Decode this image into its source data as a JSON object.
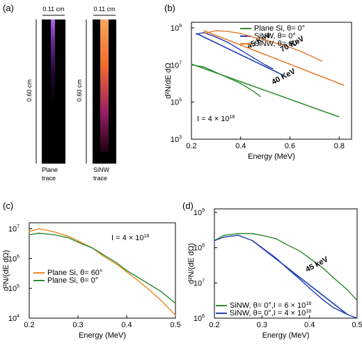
{
  "panels": {
    "a": {
      "letter": "(a)",
      "width_label": "0.11 cm",
      "height_label": "0.60 cm",
      "trace_labels": [
        "Plane trace",
        "SiNW trace"
      ],
      "trace_label_lines": [
        [
          "Plane",
          "trace"
        ],
        [
          "SiNW",
          "trace"
        ]
      ]
    },
    "b": {
      "letter": "(b)"
    },
    "c": {
      "letter": "(c)"
    },
    "d": {
      "letter": "(d)"
    }
  },
  "chart_data": [
    {
      "id": "b",
      "type": "line",
      "xlabel": "Energy (MeV)",
      "ylabel": "d²N/dE dΩ",
      "xlim": [
        0.2,
        0.85
      ],
      "ylim_log10": [
        3,
        9.3
      ],
      "log_y": true,
      "x_ticks": [
        "0.2",
        "0.4",
        "0.6",
        "0.8"
      ],
      "x_tick_values": [
        0.2,
        0.4,
        0.6,
        0.8
      ],
      "y_tick_exponents": [
        3,
        5,
        7,
        9
      ],
      "y_tick_base": "10",
      "annotation": "I = 4 × 10",
      "annotation_sup": "18",
      "legend_position": "top-right",
      "series": [
        {
          "name": "Plane Si, θ= 0°",
          "color": "#2e8b2e",
          "x": [
            0.2,
            0.25,
            0.3,
            0.35,
            0.4,
            0.45,
            0.48
          ],
          "log10y": [
            7.0,
            6.9,
            6.6,
            6.3,
            6.0,
            5.6,
            5.3
          ],
          "fit_label": "40 KeV",
          "fit_x": [
            0.2,
            0.8
          ],
          "fit_log10y": [
            7.05,
            4.2
          ]
        },
        {
          "name": "SiNW, θ= 0°",
          "color": "#1f3fb0",
          "x": [
            0.22,
            0.25,
            0.3,
            0.35,
            0.4,
            0.45,
            0.5,
            0.53
          ],
          "log10y": [
            8.65,
            8.75,
            8.5,
            8.2,
            7.8,
            7.4,
            7.0,
            6.8
          ],
          "fit_label": "45 KeV",
          "fit_x": [
            0.22,
            0.58
          ],
          "fit_log10y": [
            8.7,
            6.4
          ]
        },
        {
          "name": "SiNW, θ= 60°",
          "color": "#e87a2f",
          "x": [
            0.25,
            0.3,
            0.35,
            0.4,
            0.45,
            0.5,
            0.55,
            0.6,
            0.65,
            0.7,
            0.73
          ],
          "log10y": [
            8.7,
            8.85,
            8.8,
            8.7,
            8.5,
            8.35,
            8.15,
            7.95,
            7.7,
            7.4,
            7.2
          ],
          "fit_label": "70 KeV",
          "fit_x": [
            0.25,
            0.82
          ],
          "fit_log10y": [
            8.85,
            5.9
          ]
        }
      ]
    },
    {
      "id": "c",
      "type": "line",
      "xlabel": "Energy (MeV)",
      "ylabel": "d²N/(dE dΩ)",
      "xlim": [
        0.2,
        0.5
      ],
      "ylim_log10": [
        4,
        7.2
      ],
      "log_y": true,
      "x_ticks": [
        "0.2",
        "0.3",
        "0.4",
        "0.5"
      ],
      "x_tick_values": [
        0.2,
        0.3,
        0.4,
        0.5
      ],
      "y_tick_exponents": [
        4,
        5,
        6,
        7
      ],
      "y_tick_base": "10",
      "annotation": "I = 4 × 10",
      "annotation_sup": "18",
      "legend_position": "bottom-left",
      "series": [
        {
          "name": "Plane Si, θ= 60°",
          "color": "#e88a1f",
          "x": [
            0.2,
            0.22,
            0.25,
            0.28,
            0.3,
            0.33,
            0.35,
            0.38,
            0.4,
            0.42,
            0.45,
            0.47,
            0.5
          ],
          "log10y": [
            6.9,
            7.0,
            6.9,
            6.75,
            6.6,
            6.35,
            6.1,
            5.8,
            5.55,
            5.3,
            4.9,
            4.6,
            4.1
          ]
        },
        {
          "name": "Plane Si, θ= 0°",
          "color": "#2e8b2e",
          "x": [
            0.2,
            0.22,
            0.25,
            0.28,
            0.3,
            0.33,
            0.35,
            0.38,
            0.4,
            0.42,
            0.45,
            0.47,
            0.5
          ],
          "log10y": [
            6.8,
            6.85,
            6.8,
            6.7,
            6.55,
            6.35,
            6.15,
            5.85,
            5.6,
            5.4,
            5.1,
            4.9,
            4.5
          ]
        }
      ]
    },
    {
      "id": "d",
      "type": "line",
      "xlabel": "Energy (MeV)",
      "ylabel": "d²N/(dE dΩ)",
      "xlim": [
        0.2,
        0.5
      ],
      "ylim_log10": [
        6,
        9.1
      ],
      "log_y": true,
      "x_ticks": [
        "0.2",
        "0.3",
        "0.4",
        "0.5"
      ],
      "x_tick_values": [
        0.2,
        0.3,
        0.4,
        0.5
      ],
      "y_tick_exponents": [
        6,
        7,
        8,
        9
      ],
      "y_tick_base": "10",
      "legend_position": "bottom-left",
      "series": [
        {
          "name": "SiNW, θ= 0°,I = 6 × 10",
          "name_sup": "18",
          "color": "#2e8b2e",
          "x": [
            0.2,
            0.22,
            0.25,
            0.28,
            0.3,
            0.33,
            0.35,
            0.38,
            0.4,
            0.43,
            0.45,
            0.48,
            0.5
          ],
          "log10y": [
            8.2,
            8.35,
            8.4,
            8.4,
            8.35,
            8.25,
            8.1,
            7.9,
            7.7,
            7.4,
            7.15,
            6.8,
            6.5
          ]
        },
        {
          "name": "SiNW, θ= 0°,I = 4 × 10",
          "name_sup": "18",
          "color": "#1f3fb0",
          "x": [
            0.2,
            0.22,
            0.25,
            0.28,
            0.3,
            0.33,
            0.35,
            0.38,
            0.4,
            0.43,
            0.45,
            0.48,
            0.5
          ],
          "log10y": [
            8.2,
            8.3,
            8.35,
            8.2,
            8.0,
            7.7,
            7.45,
            7.1,
            6.85,
            6.5,
            6.3,
            6.1,
            6.0
          ],
          "fit_label": "45 keV",
          "fit_x": [
            0.28,
            0.48
          ],
          "fit_log10y": [
            8.2,
            6.1
          ]
        }
      ]
    }
  ]
}
